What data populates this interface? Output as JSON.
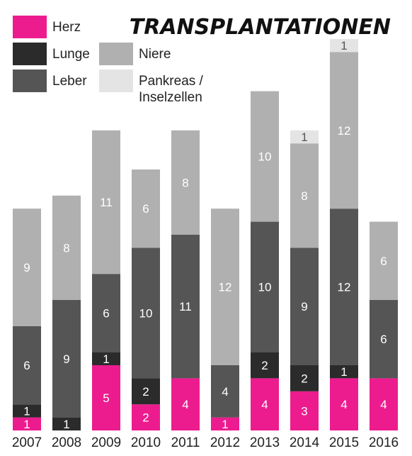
{
  "chart_data": {
    "type": "bar",
    "stacked": true,
    "title": "TRANSPLANTATIONEN",
    "categories": [
      "2007",
      "2008",
      "2009",
      "2010",
      "2011",
      "2012",
      "2013",
      "2014",
      "2015",
      "2016"
    ],
    "series": [
      {
        "name": "Herz",
        "color": "#ec1c8f",
        "label_color": "#ffffff",
        "values": [
          1,
          0,
          5,
          2,
          4,
          1,
          4,
          3,
          4,
          4
        ]
      },
      {
        "name": "Lunge",
        "color": "#2b2b2b",
        "label_color": "#ffffff",
        "values": [
          1,
          1,
          1,
          2,
          0,
          0,
          2,
          2,
          1,
          0
        ]
      },
      {
        "name": "Leber",
        "color": "#555555",
        "label_color": "#ffffff",
        "values": [
          6,
          9,
          6,
          10,
          11,
          4,
          10,
          9,
          12,
          6
        ]
      },
      {
        "name": "Niere",
        "color": "#b0b0b0",
        "label_color": "#ffffff",
        "values": [
          9,
          8,
          11,
          6,
          8,
          12,
          10,
          8,
          12,
          6
        ]
      },
      {
        "name": "Pankreas / Inselzellen",
        "color": "#e4e4e4",
        "label_color": "#555555",
        "values": [
          0,
          0,
          0,
          0,
          0,
          0,
          0,
          1,
          1,
          0
        ]
      }
    ],
    "legend": {
      "placement": "top-left",
      "label_lines": {
        "Herz": [
          "Herz"
        ],
        "Lunge": [
          "Lunge"
        ],
        "Leber": [
          "Leber"
        ],
        "Niere": [
          "Niere"
        ],
        "Pankreas / Inselzellen": [
          "Pankreas /",
          "Inselzellen"
        ]
      }
    },
    "ylim": [
      0,
      30
    ],
    "grid": false,
    "xlabel": "",
    "ylabel": ""
  }
}
